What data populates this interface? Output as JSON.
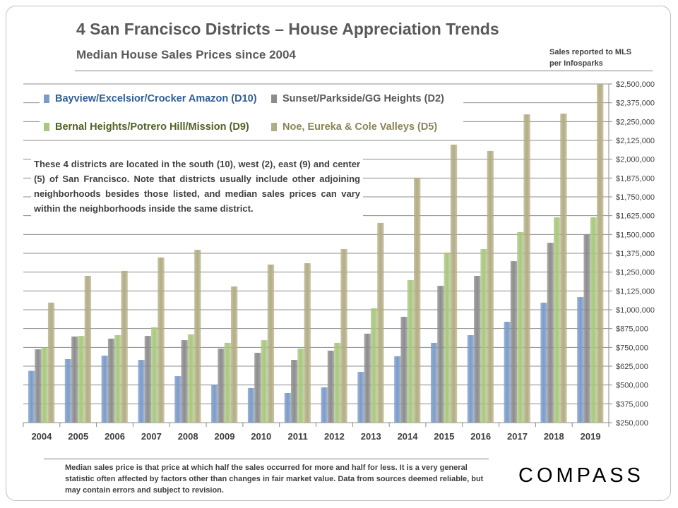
{
  "title": "4 San Francisco Districts – House Appreciation Trends",
  "subtitle": "Median House Sales Prices since 2004",
  "source": [
    "Sales reported to MLS",
    "per Infosparks"
  ],
  "note": "These 4 districts are located in the south (10), west (2), east (9) and center (5) of San Francisco. Note that districts usually include other adjoining neighborhoods besides those listed, and median sales prices can vary within the neighborhoods inside the same district.",
  "footnote": "Median sales price is that price at which half the sales occurred for more and half for less. It is a very general statistic often affected by factors other than changes in fair market value. Data from sources deemed reliable, but may contain errors and subject to revision.",
  "logo": "COMPASS",
  "chart_data": {
    "type": "bar",
    "categories": [
      "2004",
      "2005",
      "2006",
      "2007",
      "2008",
      "2009",
      "2010",
      "2011",
      "2012",
      "2013",
      "2014",
      "2015",
      "2016",
      "2017",
      "2018",
      "2019"
    ],
    "ylim": [
      250000,
      2500000
    ],
    "ytick_step": 125000,
    "y_axis_side": "right",
    "grid": true,
    "legend_placement": "top-left",
    "series": [
      {
        "name": "Bayview/Excelsior/Crocker Amazon (D10)",
        "color": "#7b9bc8",
        "label_color": "#2f5f98",
        "values": [
          594000,
          672000,
          695000,
          667000,
          559000,
          503000,
          480000,
          447000,
          484000,
          587000,
          691000,
          780000,
          831000,
          920000,
          1047000,
          1084000
        ]
      },
      {
        "name": "Sunset/Parkside/GG Heights (D2)",
        "color": "#8c8c8c",
        "label_color": "#595959",
        "values": [
          737000,
          822000,
          808000,
          826000,
          798000,
          742000,
          714000,
          667000,
          728000,
          841000,
          953000,
          1159000,
          1225000,
          1323000,
          1445000,
          1502000
        ]
      },
      {
        "name": "Bernal Heights/Potrero Hill/Mission (D9)",
        "color": "#a9c77f",
        "label_color": "#4f6228",
        "values": [
          750000,
          826000,
          831000,
          883000,
          836000,
          780000,
          798000,
          742000,
          780000,
          1009000,
          1197000,
          1380000,
          1403000,
          1516000,
          1614000,
          1614000
        ]
      },
      {
        "name": "Noe, Eureka & Cole Valleys (D5)",
        "color": "#b3ad84",
        "label_color": "#8a8458",
        "values": [
          1047000,
          1225000,
          1258000,
          1347000,
          1398000,
          1155000,
          1300000,
          1309000,
          1403000,
          1577000,
          1877000,
          2097000,
          2055000,
          2298000,
          2303000,
          2500000
        ]
      }
    ]
  }
}
